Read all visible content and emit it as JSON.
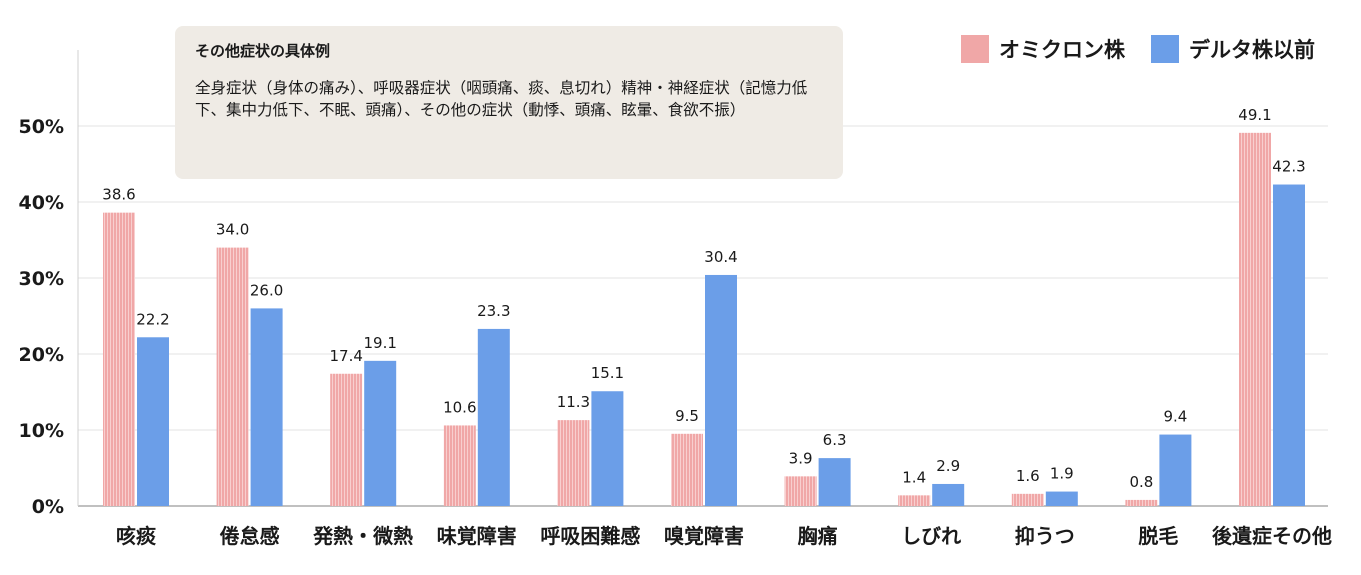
{
  "chart_data": {
    "type": "bar",
    "categories": [
      "咳痰",
      "倦怠感",
      "発熱・微熱",
      "味覚障害",
      "呼吸困難感",
      "嗅覚障害",
      "胸痛",
      "しびれ",
      "抑うつ",
      "脱毛",
      "後遺症その他"
    ],
    "series": [
      {
        "name": "オミクロン株",
        "color": "#f0a7a7",
        "values": [
          38.6,
          34.0,
          17.4,
          10.6,
          11.3,
          9.5,
          3.9,
          1.4,
          1.6,
          0.8,
          49.1
        ]
      },
      {
        "name": "デルタ株以前",
        "color": "#6b9ee8",
        "values": [
          22.2,
          26.0,
          19.1,
          23.3,
          15.1,
          30.4,
          6.3,
          2.9,
          1.9,
          9.4,
          42.3
        ]
      }
    ],
    "yticks": [
      "0%",
      "10%",
      "20%",
      "30%",
      "40%",
      "50%"
    ],
    "ylim": [
      0,
      50
    ],
    "grid": true,
    "legend": "top-right",
    "title": "",
    "xlabel": "",
    "ylabel": ""
  },
  "legend": {
    "series1": "オミクロン株",
    "series2": "デルタ株以前"
  },
  "note": {
    "title": "その他症状の具体例",
    "body": "全身症状（身体の痛み）、呼吸器症状（咽頭痛、痰、息切れ）精神・神経症状（記憶力低下、集中力低下、不眠、頭痛）、その他の症状（動悸、頭痛、眩暈、食欲不振）"
  }
}
